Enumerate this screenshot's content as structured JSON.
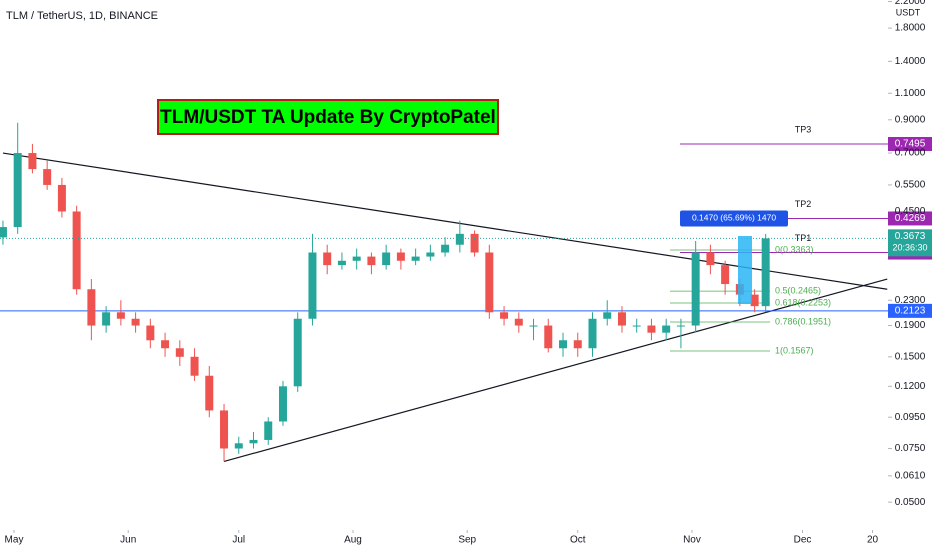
{
  "chart_data": {
    "type": "candlestick",
    "title": "TLM / TetherUS, 1D, BINANCE",
    "quote_unit": "USDT",
    "banner": "TLM/USDT TA Update By CryptoPatel",
    "log_scale": true,
    "up_color": "#26a69a",
    "down_color": "#ef5350",
    "x": [
      -3,
      1,
      5,
      9,
      13,
      17,
      21,
      25,
      29,
      33,
      37,
      41,
      45,
      49,
      53,
      57,
      61,
      65,
      69,
      73,
      77,
      81,
      85,
      89,
      93,
      97,
      101,
      105,
      109,
      113,
      117,
      121,
      125,
      129,
      133,
      137,
      141,
      145,
      149,
      153,
      157,
      161,
      165,
      169,
      173,
      177,
      181,
      185,
      189,
      193,
      197,
      201,
      204
    ],
    "open": [
      0.37,
      0.4,
      0.7,
      0.62,
      0.55,
      0.45,
      0.25,
      0.19,
      0.21,
      0.2,
      0.19,
      0.17,
      0.16,
      0.15,
      0.13,
      0.1,
      0.075,
      0.078,
      0.08,
      0.092,
      0.12,
      0.2,
      0.33,
      0.3,
      0.31,
      0.32,
      0.3,
      0.33,
      0.31,
      0.32,
      0.33,
      0.35,
      0.38,
      0.33,
      0.21,
      0.2,
      0.19,
      0.19,
      0.16,
      0.17,
      0.16,
      0.2,
      0.21,
      0.19,
      0.19,
      0.18,
      0.19,
      0.19,
      0.33,
      0.3,
      0.26,
      0.24,
      0.22
    ],
    "high": [
      0.42,
      0.88,
      0.75,
      0.66,
      0.58,
      0.47,
      0.27,
      0.22,
      0.23,
      0.21,
      0.2,
      0.18,
      0.17,
      0.16,
      0.14,
      0.105,
      0.082,
      0.085,
      0.095,
      0.125,
      0.21,
      0.38,
      0.35,
      0.33,
      0.34,
      0.33,
      0.35,
      0.34,
      0.34,
      0.35,
      0.37,
      0.42,
      0.39,
      0.35,
      0.22,
      0.21,
      0.2,
      0.2,
      0.18,
      0.18,
      0.21,
      0.23,
      0.22,
      0.2,
      0.2,
      0.2,
      0.2,
      0.36,
      0.35,
      0.31,
      0.27,
      0.25,
      0.38
    ],
    "low": [
      0.35,
      0.38,
      0.6,
      0.53,
      0.43,
      0.24,
      0.17,
      0.18,
      0.19,
      0.18,
      0.16,
      0.15,
      0.14,
      0.125,
      0.095,
      0.068,
      0.072,
      0.075,
      0.077,
      0.089,
      0.115,
      0.19,
      0.28,
      0.29,
      0.29,
      0.28,
      0.29,
      0.29,
      0.3,
      0.31,
      0.32,
      0.33,
      0.32,
      0.2,
      0.19,
      0.18,
      0.17,
      0.155,
      0.15,
      0.15,
      0.15,
      0.19,
      0.18,
      0.18,
      0.17,
      0.17,
      0.16,
      0.18,
      0.28,
      0.24,
      0.22,
      0.21,
      0.21
    ],
    "close": [
      0.4,
      0.7,
      0.62,
      0.55,
      0.45,
      0.25,
      0.19,
      0.21,
      0.2,
      0.19,
      0.17,
      0.16,
      0.15,
      0.13,
      0.1,
      0.075,
      0.078,
      0.08,
      0.092,
      0.12,
      0.2,
      0.33,
      0.3,
      0.31,
      0.32,
      0.3,
      0.33,
      0.31,
      0.32,
      0.33,
      0.35,
      0.38,
      0.33,
      0.21,
      0.2,
      0.19,
      0.19,
      0.16,
      0.17,
      0.16,
      0.2,
      0.21,
      0.19,
      0.19,
      0.18,
      0.19,
      0.19,
      0.33,
      0.3,
      0.26,
      0.24,
      0.22,
      0.3673
    ],
    "countdown": "20:36:30",
    "xlim": [
      -3.8,
      237.2
    ],
    "ylim": [
      0.0405,
      2.226
    ],
    "xticks": [
      {
        "value": 0,
        "label": "May"
      },
      {
        "value": 31,
        "label": "Jun"
      },
      {
        "value": 61,
        "label": "Jul"
      },
      {
        "value": 92,
        "label": "Aug"
      },
      {
        "value": 123,
        "label": "Sep"
      },
      {
        "value": 153,
        "label": "Oct"
      },
      {
        "value": 184,
        "label": "Nov"
      },
      {
        "value": 214,
        "label": "Dec"
      },
      {
        "value": 233,
        "label": "20"
      }
    ],
    "yticks": [
      {
        "value": 2.2,
        "label": "2.2000"
      },
      {
        "value": 1.8,
        "label": "1.8000"
      },
      {
        "value": 1.4,
        "label": "1.4000"
      },
      {
        "value": 1.1,
        "label": "1.1000"
      },
      {
        "value": 0.9,
        "label": "0.9000"
      },
      {
        "value": 0.7,
        "label": "0.7000"
      },
      {
        "value": 0.55,
        "label": "0.5500"
      },
      {
        "value": 0.45,
        "label": "0.4500"
      },
      {
        "value": 0.23,
        "label": "0.2300"
      },
      {
        "value": 0.19,
        "label": "0.1900"
      },
      {
        "value": 0.15,
        "label": "0.1500"
      },
      {
        "value": 0.12,
        "label": "0.1200"
      },
      {
        "value": 0.095,
        "label": "0.0950"
      },
      {
        "value": 0.075,
        "label": "0.0750"
      },
      {
        "value": 0.061,
        "label": "0.0610"
      },
      {
        "value": 0.05,
        "label": "0.0500"
      }
    ],
    "hlines": [
      {
        "name": "TP3",
        "value": 0.7495,
        "color": "#9c27b0"
      },
      {
        "name": "TP2",
        "value": 0.4269,
        "color": "#9c27b0"
      },
      {
        "name": "TP1",
        "value": 0.3299,
        "color": "#9c27b0"
      },
      {
        "value": 0.2123,
        "color": "#2962ff"
      }
    ],
    "fib": [
      {
        "label": "0(0.3363)",
        "value": 0.3363
      },
      {
        "label": "0.5(0.2465)",
        "value": 0.2465
      },
      {
        "label": "0.618(0.2253)",
        "value": 0.2253
      },
      {
        "label": "0.786(0.1951)",
        "value": 0.1951
      },
      {
        "label": "1(0.1567)",
        "value": 0.1567
      }
    ],
    "measure_label": "0.1470 (65.69%) 1470",
    "trendlines": [
      {
        "x": [
          -3,
          237
        ],
        "y": [
          0.7,
          0.25
        ]
      },
      {
        "x": [
          57,
          237
        ],
        "y": [
          0.068,
          0.27
        ]
      }
    ]
  }
}
